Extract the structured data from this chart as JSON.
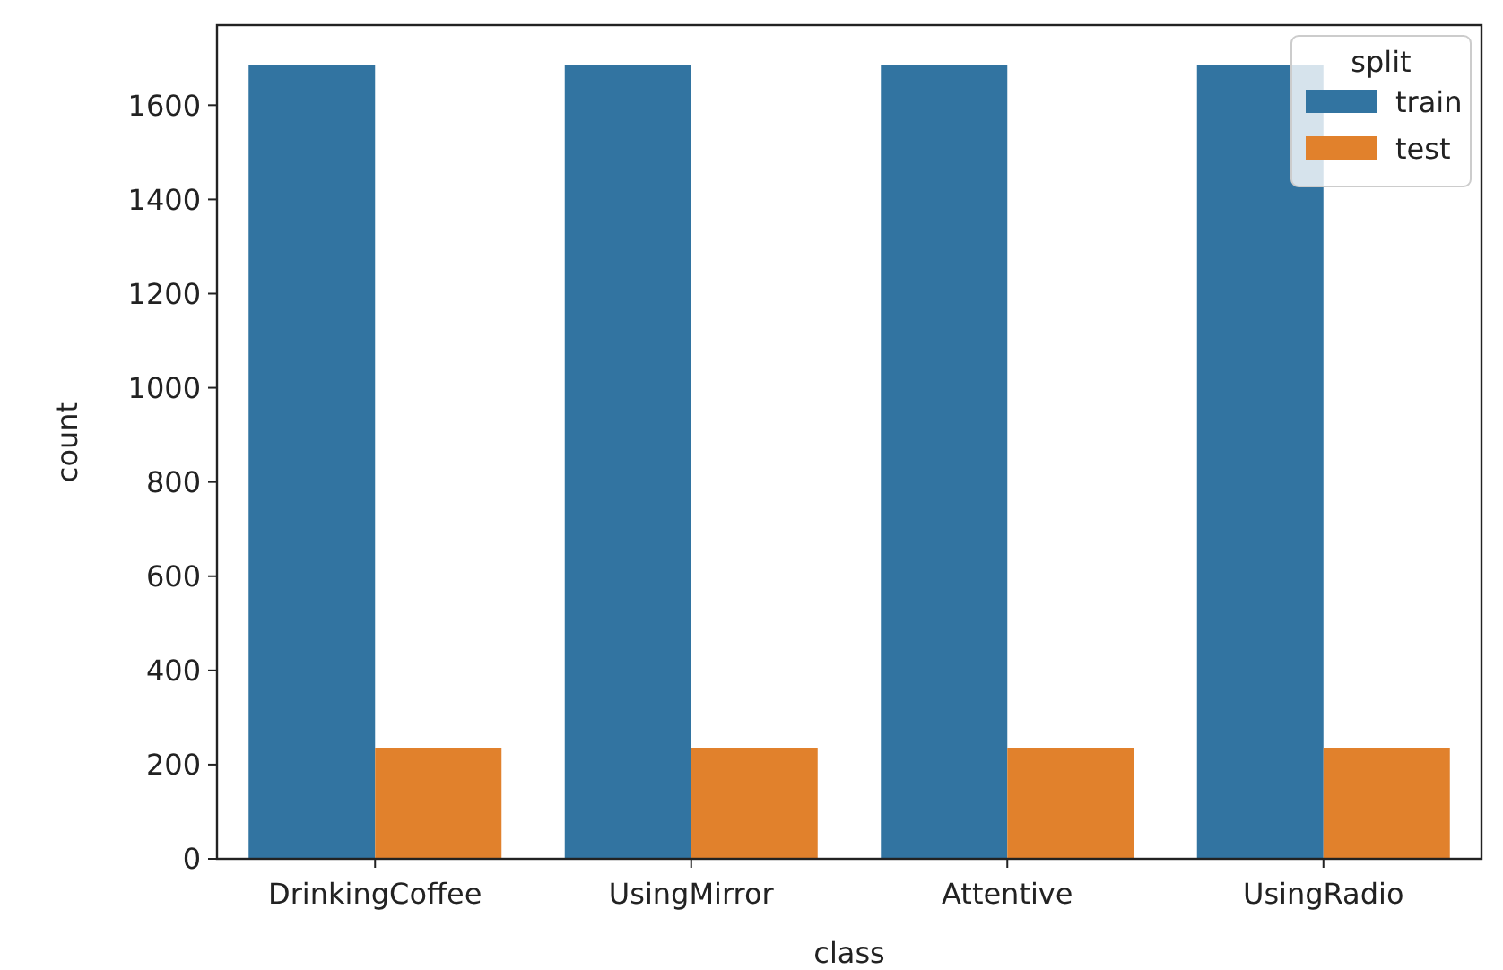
{
  "chart_data": {
    "type": "bar",
    "xlabel": "class",
    "ylabel": "count",
    "categories": [
      "DrinkingCoffee",
      "UsingMirror",
      "Attentive",
      "UsingRadio"
    ],
    "series": [
      {
        "name": "train",
        "color": "#3274a1",
        "values": [
          1685,
          1685,
          1685,
          1685
        ]
      },
      {
        "name": "test",
        "color": "#e1812c",
        "values": [
          236,
          236,
          236,
          236
        ]
      }
    ],
    "ylim": [
      0,
      1770
    ],
    "yticks": [
      0,
      200,
      400,
      600,
      800,
      1000,
      1200,
      1400,
      1600
    ],
    "legend": "top right",
    "legend_title": "split",
    "grid": false
  }
}
